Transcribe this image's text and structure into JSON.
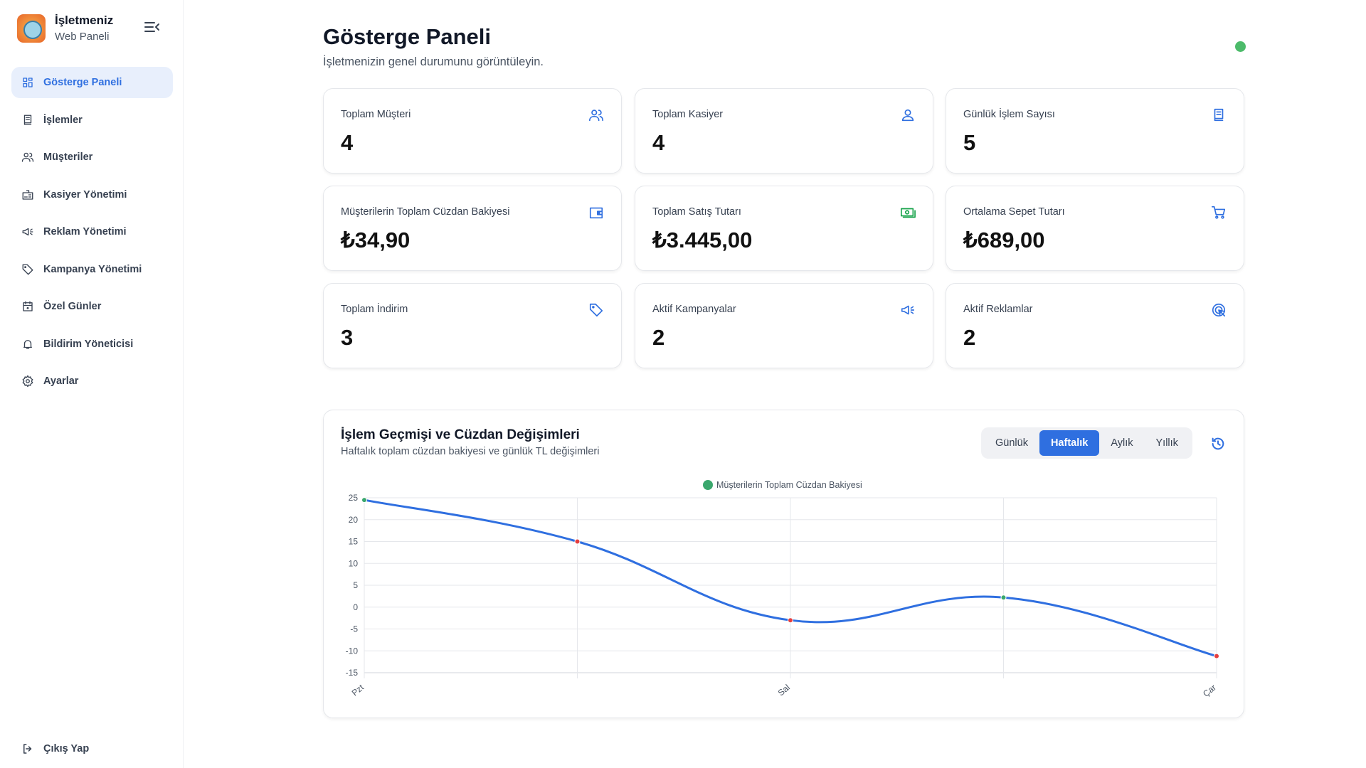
{
  "brand": {
    "title": "İşletmeniz",
    "subtitle": "Web Paneli"
  },
  "sidebar": {
    "items": [
      {
        "label": "Gösterge Paneli",
        "icon": "dashboard-icon",
        "active": true
      },
      {
        "label": "İşlemler",
        "icon": "receipt-icon"
      },
      {
        "label": "Müşteriler",
        "icon": "users-icon"
      },
      {
        "label": "Kasiyer Yönetimi",
        "icon": "id-badge-icon"
      },
      {
        "label": "Reklam Yönetimi",
        "icon": "megaphone-icon"
      },
      {
        "label": "Kampanya Yönetimi",
        "icon": "tag-icon"
      },
      {
        "label": "Özel Günler",
        "icon": "calendar-icon"
      },
      {
        "label": "Bildirim Yöneticisi",
        "icon": "bell-icon"
      },
      {
        "label": "Ayarlar",
        "icon": "gear-icon"
      }
    ],
    "logout": "Çıkış Yap"
  },
  "header": {
    "title": "Gösterge Paneli",
    "subtitle": "İşletmenizin genel durumunu görüntüleyin.",
    "status_color": "#4cbb6a"
  },
  "cards": [
    {
      "label": "Toplam Müşteri",
      "value": "4",
      "icon": "users-icon",
      "color": "#2f6fe0"
    },
    {
      "label": "Toplam Kasiyer",
      "value": "4",
      "icon": "user-icon",
      "color": "#2f6fe0"
    },
    {
      "label": "Günlük İşlem Sayısı",
      "value": "5",
      "icon": "receipt-icon",
      "color": "#2f6fe0"
    },
    {
      "label": "Müşterilerin Toplam Cüzdan Bakiyesi",
      "value": "₺34,90",
      "icon": "wallet-icon",
      "color": "#2f6fe0"
    },
    {
      "label": "Toplam Satış Tutarı",
      "value": "₺3.445,00",
      "icon": "cash-icon",
      "color": "#16a34a"
    },
    {
      "label": "Ortalama Sepet Tutarı",
      "value": "₺689,00",
      "icon": "cart-icon",
      "color": "#2f6fe0"
    },
    {
      "label": "Toplam İndirim",
      "value": "3",
      "icon": "tag-icon",
      "color": "#2f6fe0"
    },
    {
      "label": "Aktif Kampanyalar",
      "value": "2",
      "icon": "megaphone-icon",
      "color": "#2f6fe0"
    },
    {
      "label": "Aktif Reklamlar",
      "value": "2",
      "icon": "target-icon",
      "color": "#2f6fe0"
    }
  ],
  "chart_section": {
    "title": "İşlem Geçmişi ve Cüzdan Değişimleri",
    "subtitle": "Haftalık toplam cüzdan bakiyesi ve günlük TL değişimleri",
    "periods": [
      "Günlük",
      "Haftalık",
      "Aylık",
      "Yıllık"
    ],
    "selected": "Haftalık"
  },
  "chart_data": {
    "type": "line",
    "categories": [
      "Pzt",
      "",
      "Sal",
      "",
      "Çar"
    ],
    "series": [
      {
        "name": "Müşterilerin Toplam Cüzdan Bakiyesi",
        "values": [
          24.5,
          15,
          -3,
          2.2,
          -11.2
        ],
        "color": "#2f6fe0",
        "legend_color": "#3aa76d"
      }
    ],
    "point_colors": [
      "#3aa76d",
      "#e53e3e",
      "#e53e3e",
      "#3aa76d",
      "#e53e3e"
    ],
    "ylim": [
      -15,
      25
    ],
    "yticks": [
      25,
      20,
      15,
      10,
      5,
      0,
      -5,
      -10,
      -15
    ],
    "grid": true,
    "legend": "top-center",
    "smooth": true
  }
}
